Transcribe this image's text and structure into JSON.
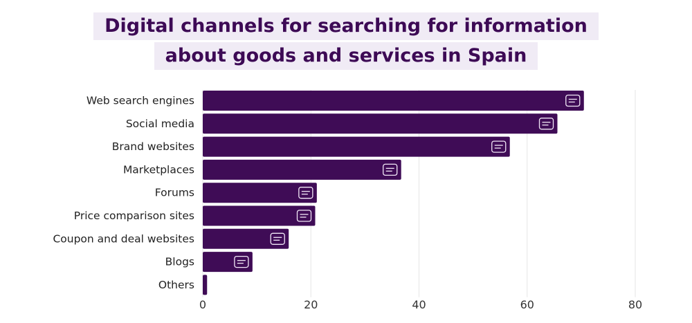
{
  "chart_data": {
    "type": "bar",
    "orientation": "horizontal",
    "title": [
      "Digital channels for searching for information",
      "about goods and services in Spain"
    ],
    "categories": [
      "Web search engines",
      "Social media",
      "Brand websites",
      "Marketplaces",
      "Forums",
      "Price comparison sites",
      "Coupon and deal websites",
      "Blogs",
      "Others"
    ],
    "values": [
      70.5,
      65.6,
      56.8,
      36.7,
      21.1,
      20.8,
      15.9,
      9.2,
      0.8
    ],
    "icons": [
      "globe-icon",
      "phone-heart-icon",
      "www-cursor-icon",
      "store-icon",
      "chat-people-icon",
      "person-comparing-icon",
      "coupon-icon",
      "blog-edit-icon",
      ""
    ],
    "xlim": [
      0,
      80
    ],
    "xticks": [
      0,
      20,
      40,
      60,
      80
    ],
    "xlabel": "",
    "ylabel": "",
    "grid": true,
    "bar_color": "#3f0c56",
    "title_color": "#3d0a55",
    "title_background": "#f0ebf5"
  }
}
